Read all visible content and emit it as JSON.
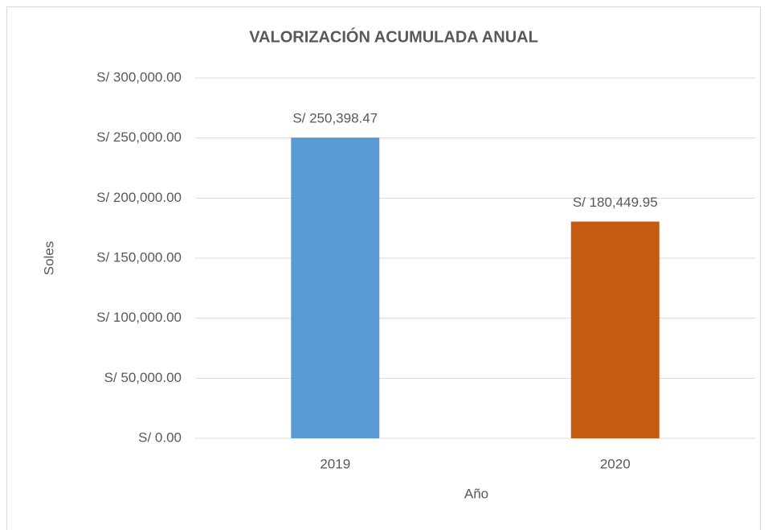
{
  "chart_data": {
    "type": "bar",
    "title": "VALORIZACIÓN ACUMULADA ANUAL",
    "x_label": "Año",
    "y_label": "Soles",
    "categories": [
      "2019",
      "2020"
    ],
    "values": [
      250398.47,
      180449.95
    ],
    "value_labels": [
      "S/ 250,398.47",
      "S/ 180,449.95"
    ],
    "colors": [
      "#5b9bd5",
      "#c55a11"
    ],
    "ylim": [
      0,
      300000
    ],
    "yticks": [
      {
        "value": 0,
        "label": "S/ 0.00"
      },
      {
        "value": 50000,
        "label": "S/ 50,000.00"
      },
      {
        "value": 100000,
        "label": "S/ 100,000.00"
      },
      {
        "value": 150000,
        "label": "S/ 150,000.00"
      },
      {
        "value": 200000,
        "label": "S/ 200,000.00"
      },
      {
        "value": 250000,
        "label": "S/ 250,000.00"
      },
      {
        "value": 300000,
        "label": "S/ 300,000.00"
      }
    ],
    "grid": true
  }
}
